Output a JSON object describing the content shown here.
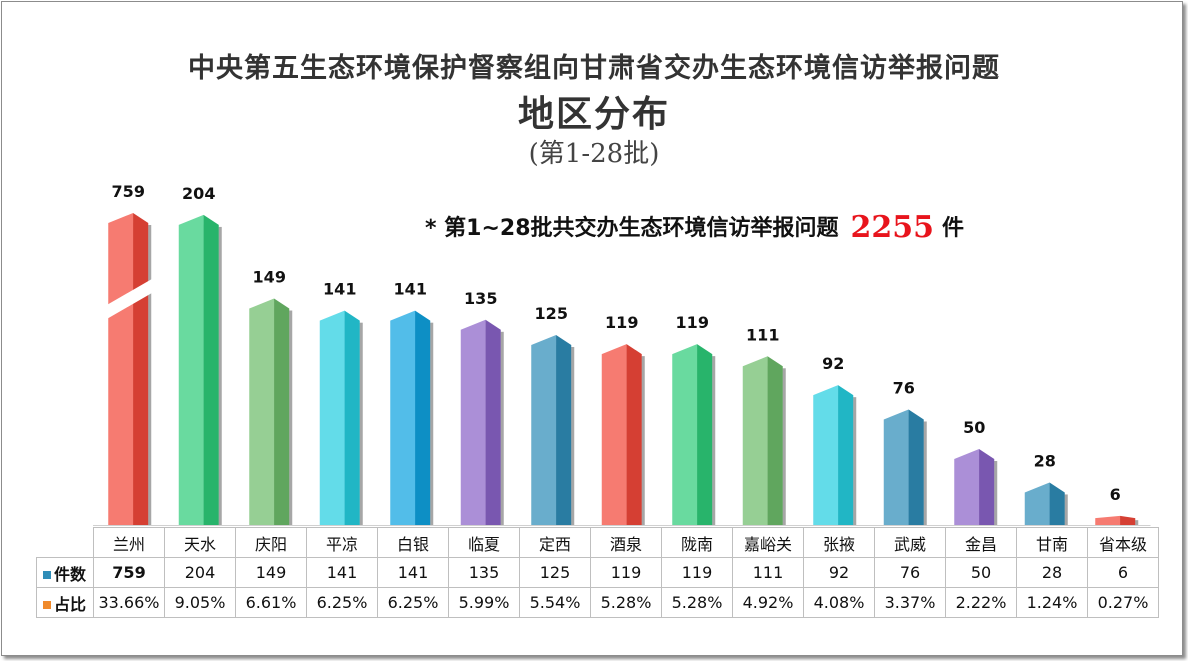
{
  "title_line1": "中央第五生态环境保护督察组向甘肃省交办生态环境信访举报问题",
  "title_line2": "地区分布",
  "title_line3": "(第1-28批)",
  "note": {
    "prefix": "* 第1~28批共交办生态环境信访举报问题",
    "total": "2255",
    "unit": "件"
  },
  "chart_data": {
    "type": "bar",
    "categories": [
      "兰州",
      "天水",
      "庆阳",
      "平凉",
      "白银",
      "临夏",
      "定西",
      "酒泉",
      "陇南",
      "嘉峪关",
      "张掖",
      "武威",
      "金昌",
      "甘南",
      "省本级"
    ],
    "series": [
      {
        "name": "件数",
        "values": [
          759,
          204,
          149,
          141,
          141,
          135,
          125,
          119,
          119,
          111,
          92,
          76,
          50,
          28,
          6
        ]
      },
      {
        "name": "占比",
        "values": [
          "33.66%",
          "9.05%",
          "6.61%",
          "6.25%",
          "6.25%",
          "5.99%",
          "5.54%",
          "5.28%",
          "5.28%",
          "4.92%",
          "4.08%",
          "3.37%",
          "2.22%",
          "1.24%",
          "0.27%"
        ]
      }
    ],
    "broken_axis": true,
    "bar_colors": [
      "#f2483a",
      "#2ecc7a",
      "#6dbd6b",
      "#26cfe0",
      "#0fa3e0",
      "#8a63c8",
      "#2f8db8",
      "#f2483a",
      "#2ecc7a",
      "#6dbd6b",
      "#26cfe0",
      "#2f8db8",
      "#8a63c8",
      "#2f8db8",
      "#f2483a"
    ],
    "legend_colors": {
      "count": "#2f8db8",
      "ratio": "#f08a2c"
    },
    "data_table": true
  }
}
